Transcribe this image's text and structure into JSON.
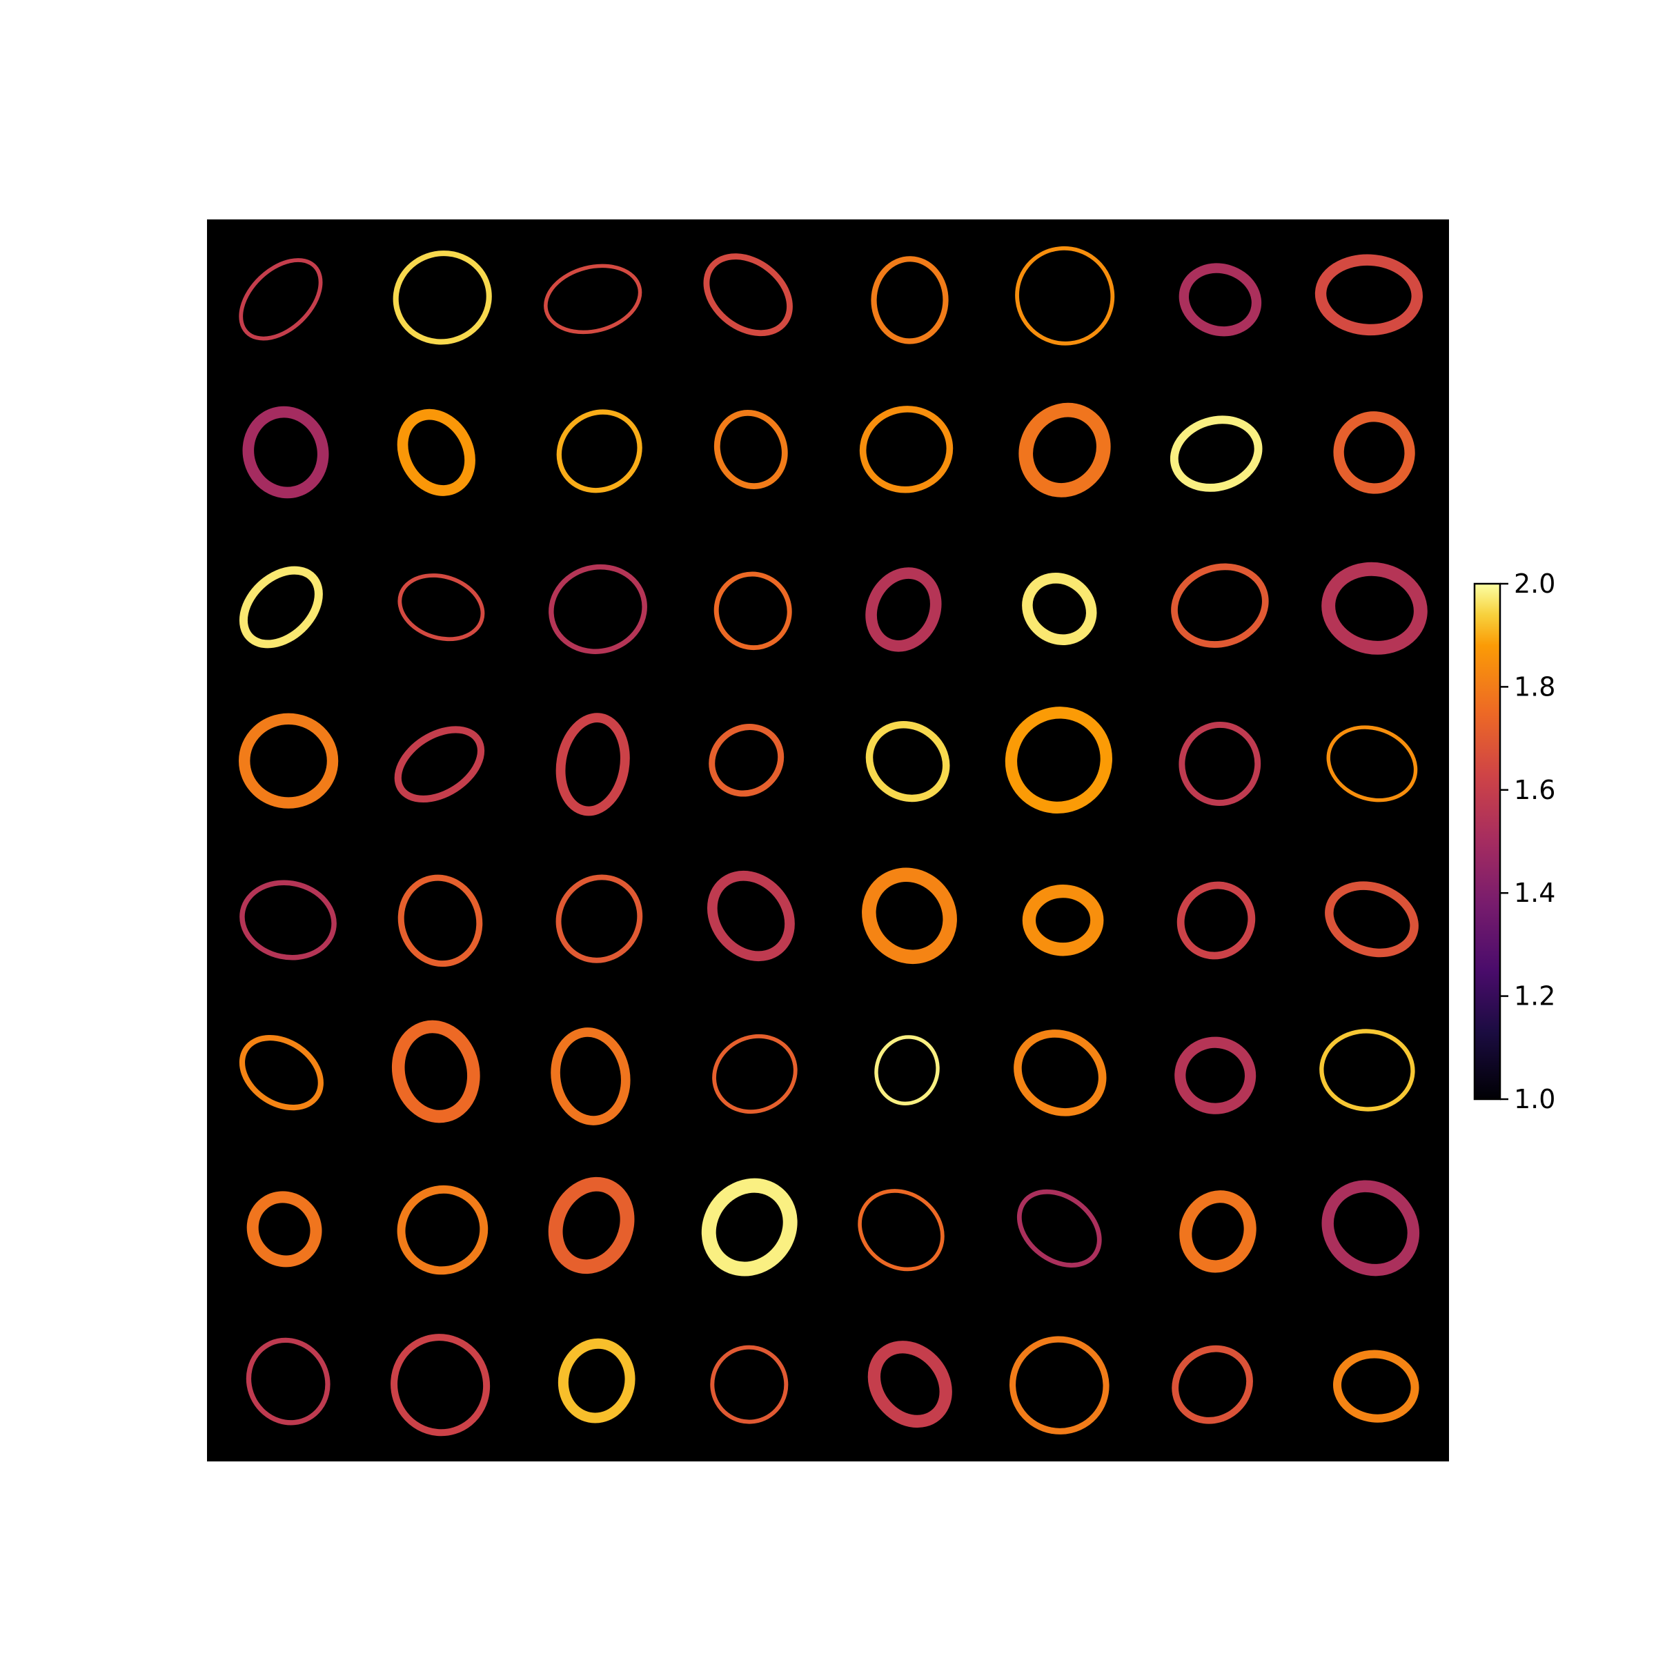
{
  "chart_data": {
    "type": "heatmap",
    "description_of_cells": "8x8 grid of ring-shaped blobs on black background, colored by value with inferno colormap",
    "grid": {
      "rows": 8,
      "cols": 8
    },
    "colormap": "inferno",
    "background_color": "#000000",
    "colorbar": {
      "min": 1.0,
      "max": 2.0,
      "ticks": [
        1.0,
        1.2,
        1.4,
        1.6,
        1.8,
        2.0
      ],
      "tick_labels": [
        "1.0",
        "1.2",
        "1.4",
        "1.6",
        "1.8",
        "2.0"
      ],
      "placement": "right"
    },
    "values": [
      [
        1.6,
        1.95,
        1.65,
        1.65,
        1.8,
        1.85,
        1.52,
        1.65
      ],
      [
        1.5,
        1.87,
        1.9,
        1.8,
        1.85,
        1.78,
        1.98,
        1.72
      ],
      [
        1.97,
        1.65,
        1.55,
        1.75,
        1.55,
        1.97,
        1.7,
        1.55
      ],
      [
        1.8,
        1.6,
        1.62,
        1.72,
        1.95,
        1.88,
        1.58,
        1.85
      ],
      [
        1.55,
        1.72,
        1.7,
        1.58,
        1.82,
        1.85,
        1.62,
        1.68
      ],
      [
        1.82,
        1.75,
        1.78,
        1.72,
        1.98,
        1.82,
        1.55,
        1.93
      ],
      [
        1.78,
        1.8,
        1.72,
        1.98,
        1.75,
        1.52,
        1.78,
        1.52
      ],
      [
        1.58,
        1.62,
        1.92,
        1.7,
        1.6,
        1.8,
        1.68,
        1.82
      ]
    ],
    "title": "",
    "xlabel": "",
    "ylabel": ""
  }
}
